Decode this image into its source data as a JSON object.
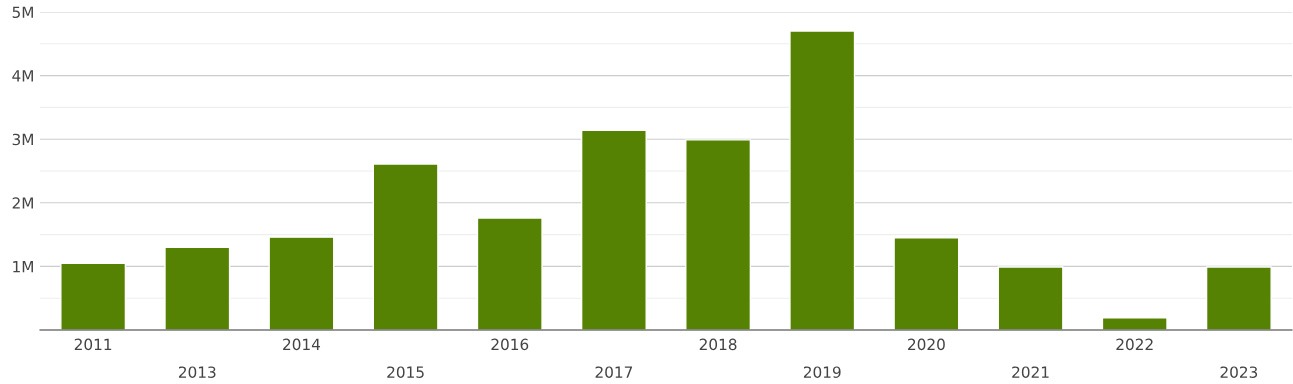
{
  "chart_data": {
    "type": "bar",
    "categories": [
      "2011",
      "2013",
      "2014",
      "2015",
      "2016",
      "2017",
      "2018",
      "2019",
      "2020",
      "2021",
      "2022",
      "2023"
    ],
    "values": [
      1050000,
      1300000,
      1460000,
      2610000,
      1760000,
      3140000,
      2990000,
      4700000,
      1450000,
      990000,
      190000,
      990000
    ],
    "color": "#568203",
    "ylim": [
      0,
      5000000
    ],
    "yticks": [
      {
        "value": 500000,
        "label": null
      },
      {
        "value": 1000000,
        "label": "1M"
      },
      {
        "value": 1500000,
        "label": null
      },
      {
        "value": 2000000,
        "label": "2M"
      },
      {
        "value": 2500000,
        "label": null
      },
      {
        "value": 3000000,
        "label": "3M"
      },
      {
        "value": 3500000,
        "label": null
      },
      {
        "value": 4000000,
        "label": "4M"
      },
      {
        "value": 4500000,
        "label": null
      },
      {
        "value": 5000000,
        "label": "5M"
      }
    ],
    "grid": "y"
  }
}
